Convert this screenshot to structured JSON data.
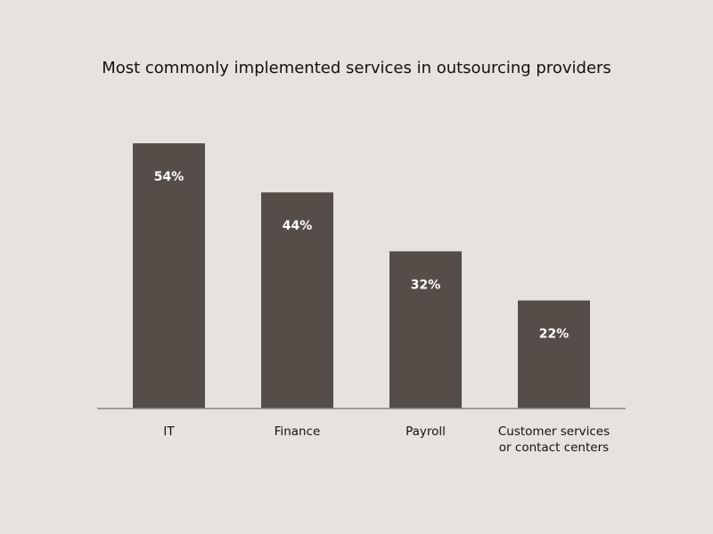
{
  "chart_data": {
    "type": "bar",
    "title": "Most commonly implemented services in outsourcing providers",
    "categories": [
      "IT",
      "Finance",
      "Payroll",
      "Customer services or contact centers"
    ],
    "category_lines": [
      [
        "IT"
      ],
      [
        "Finance"
      ],
      [
        "Payroll"
      ],
      [
        "Customer services",
        "or contact centers"
      ]
    ],
    "values": [
      54,
      44,
      32,
      22
    ],
    "data_labels": [
      "54%",
      "44%",
      "32%",
      "22%"
    ],
    "xlabel": "",
    "ylabel": "",
    "ylim": [
      0,
      54
    ],
    "grid": false,
    "colors": {
      "bar": "#554e48",
      "background": "#e6e2de",
      "axis": "#8a8580"
    }
  }
}
